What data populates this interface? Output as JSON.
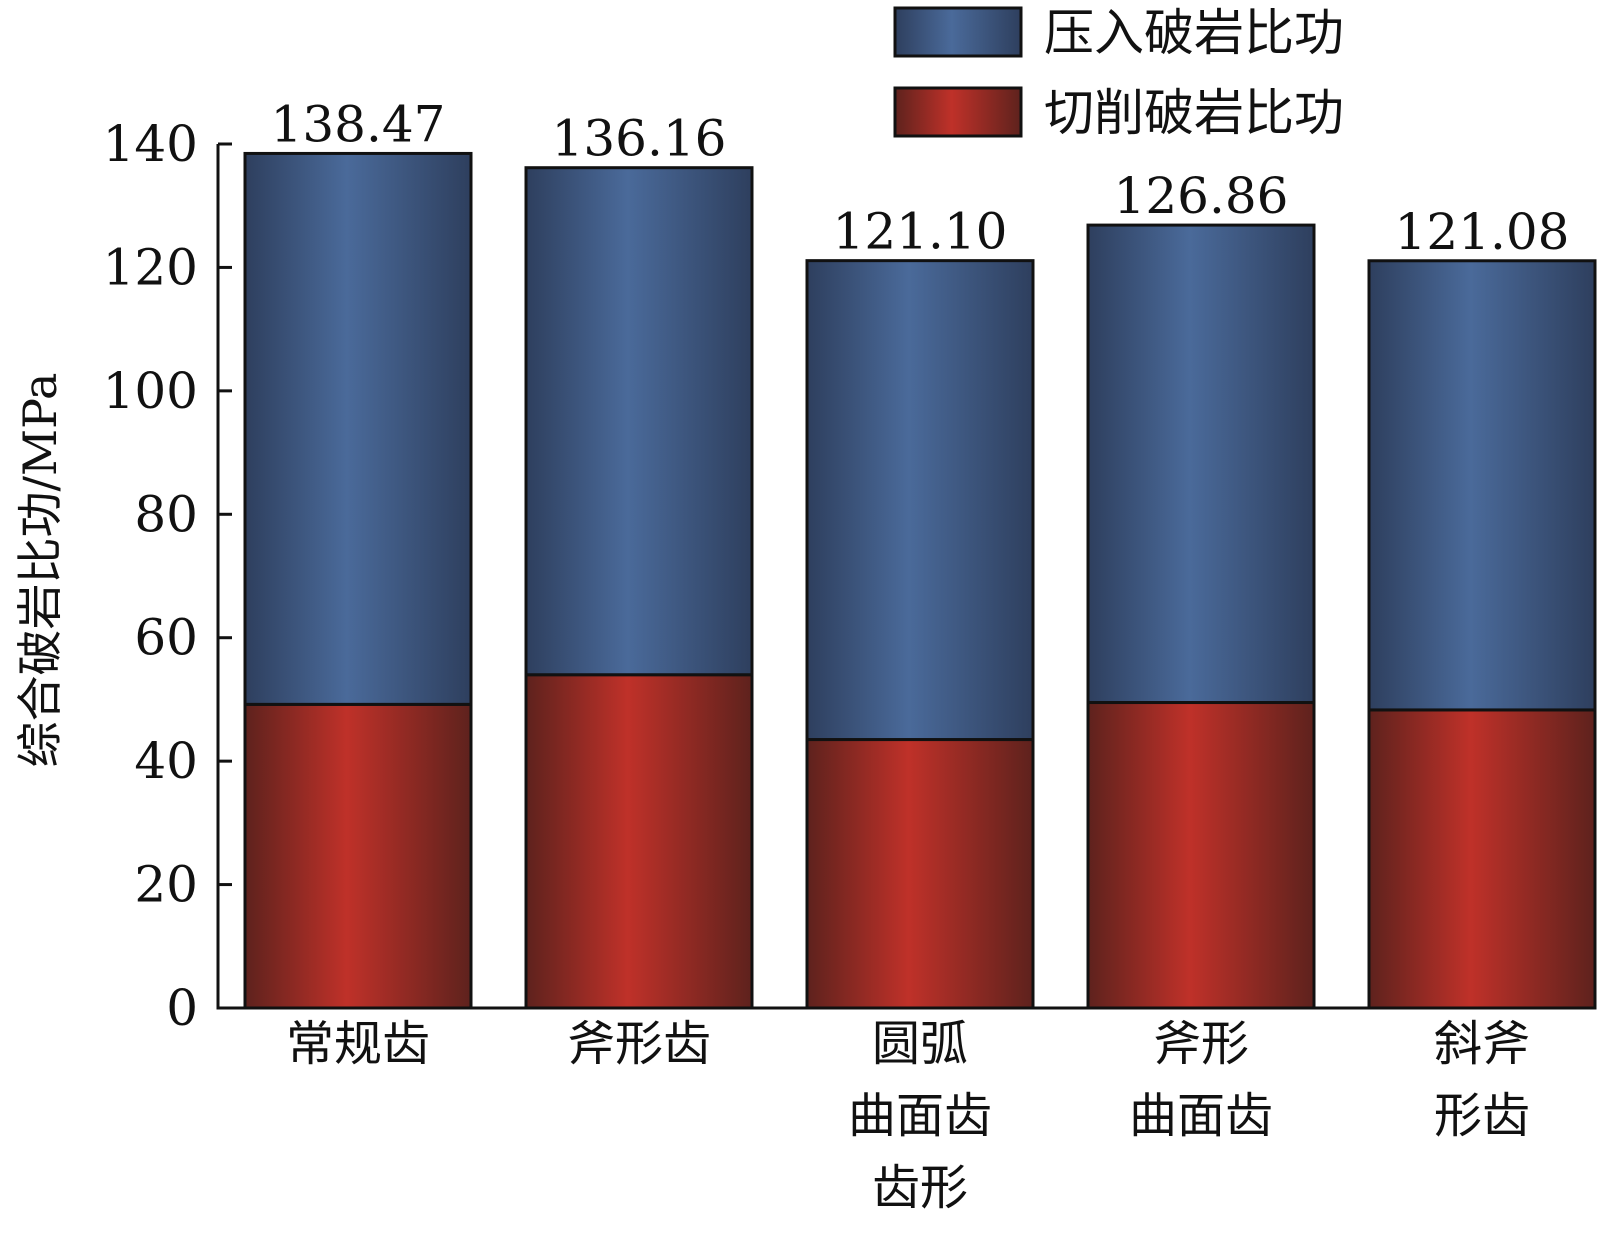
{
  "chart_data": {
    "type": "bar",
    "stacked": true,
    "categories": [
      [
        "常规齿"
      ],
      [
        "斧形齿"
      ],
      [
        "圆弧",
        "曲面齿",
        "齿形"
      ],
      [
        "斧形",
        "曲面齿"
      ],
      [
        "斜斧",
        "形齿"
      ]
    ],
    "series": [
      {
        "name": "切削破岩比功",
        "color": "#b3302a",
        "values": [
          49.2,
          54.0,
          43.5,
          49.5,
          48.3
        ]
      },
      {
        "name": "压入破岩比功",
        "color": "#415d88",
        "values": [
          89.27,
          82.16,
          77.6,
          77.36,
          72.78
        ]
      }
    ],
    "totals": [
      "138.47",
      "136.16",
      "121.10",
      "126.86",
      "121.08"
    ],
    "ylabel": "综合破岩比功/MPa",
    "xlabel": "",
    "ylim": [
      0,
      140
    ],
    "yticks": [
      0,
      20,
      40,
      60,
      80,
      100,
      120,
      140
    ],
    "legend": {
      "position": "top-right",
      "order": [
        "压入破岩比功",
        "切削破岩比功"
      ]
    },
    "grid": false
  }
}
